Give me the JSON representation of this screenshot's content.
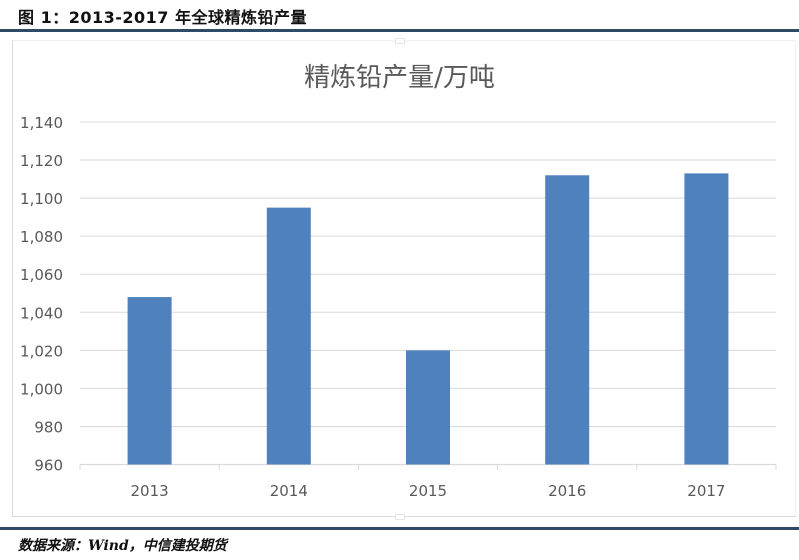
{
  "figure": {
    "title": "图 1：2013-2017 年全球精炼铅产量",
    "source": "数据来源：Wind，中信建投期货"
  },
  "colors": {
    "bar": "#4f81bd",
    "rule": "#2e4a66",
    "grid": "#d9d9d9",
    "axis_text": "#595959"
  },
  "chart_data": {
    "type": "bar",
    "title": "精炼铅产量/万吨",
    "xlabel": "",
    "ylabel": "",
    "categories": [
      "2013",
      "2014",
      "2015",
      "2016",
      "2017"
    ],
    "values": [
      1048,
      1095,
      1020,
      1112,
      1113
    ],
    "ylim": [
      960,
      1140
    ],
    "yticks": [
      960,
      980,
      1000,
      1020,
      1040,
      1060,
      1080,
      1100,
      1120,
      1140
    ],
    "ytick_labels": [
      "960",
      "980",
      "1,000",
      "1,020",
      "1,040",
      "1,060",
      "1,080",
      "1,100",
      "1,120",
      "1,140"
    ],
    "grid": true,
    "legend": false
  }
}
